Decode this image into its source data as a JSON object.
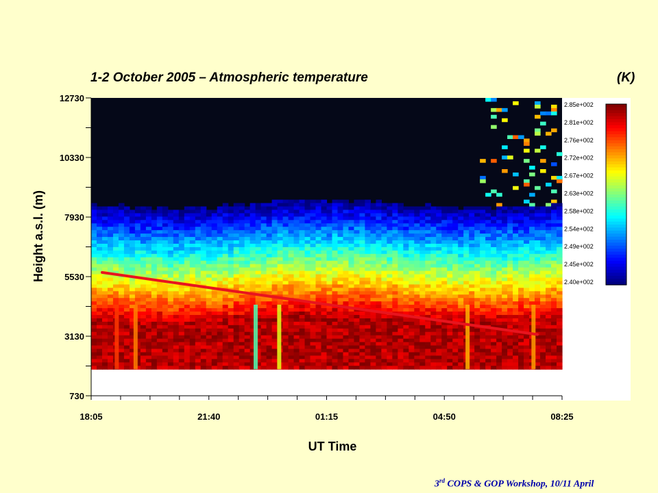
{
  "chart_data": {
    "type": "heatmap",
    "title": "1-2 October 2005 – Atmospheric temperature",
    "unit_label": "(K)",
    "xlabel": "UT Time",
    "ylabel": "Height a.s.l. (m)",
    "x_ticks": [
      "18:05",
      "21:40",
      "01:15",
      "04:50",
      "08:25"
    ],
    "y_ticks": [
      730,
      3130,
      5530,
      7930,
      10330,
      12730
    ],
    "ylim": [
      730,
      12730
    ],
    "data_bottom_height": 1800,
    "colorbar": {
      "labels": [
        "2.85e+002",
        "2.81e+002",
        "2.76e+002",
        "2.72e+002",
        "2.67e+002",
        "2.63e+002",
        "2.58e+002",
        "2.54e+002",
        "2.49e+002",
        "2.45e+002",
        "2.40e+002"
      ],
      "min": 240,
      "max": 285
    },
    "trend_line": {
      "color": "#E8141E",
      "start": {
        "time": "18:25",
        "height": 5700
      },
      "end": {
        "time": "07:40",
        "height": 3200
      }
    }
  },
  "footer": {
    "prefix": "3",
    "superscript": "rd",
    "text": " COPS & GOP Workshop, 10/11 April"
  }
}
